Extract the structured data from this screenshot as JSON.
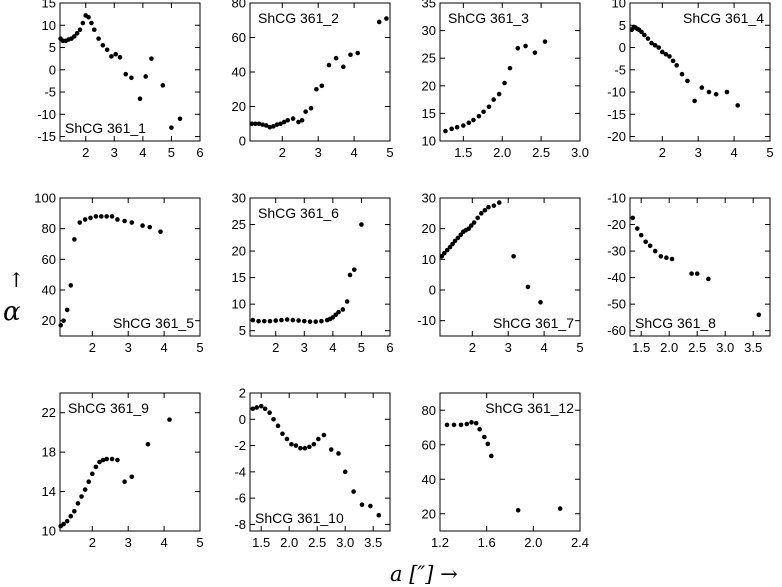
{
  "chart_data": [
    {
      "type": "scatter",
      "label": "ShCG 361_1",
      "label_pos": "bottom-left",
      "xlim": [
        1.1,
        6
      ],
      "ylim": [
        -16,
        15
      ],
      "xticks": [
        2,
        3,
        4,
        5,
        6
      ],
      "yticks": [
        -15,
        -10,
        -5,
        0,
        5,
        10,
        15
      ],
      "x": [
        1.12,
        1.2,
        1.3,
        1.4,
        1.5,
        1.6,
        1.7,
        1.8,
        1.9,
        2.0,
        2.1,
        2.2,
        2.3,
        2.45,
        2.6,
        2.75,
        2.9,
        3.05,
        3.2,
        3.4,
        3.6,
        3.9,
        4.1,
        4.3,
        4.7,
        5.0,
        5.3
      ],
      "y": [
        7,
        6.5,
        6.5,
        6.8,
        7,
        7.5,
        8.2,
        9,
        10.5,
        12.2,
        11.8,
        10.5,
        9,
        7,
        5.5,
        4.5,
        3,
        3.5,
        2.8,
        -1,
        -1.8,
        -6.5,
        -1.5,
        2.5,
        -3.5,
        -13,
        -11
      ]
    },
    {
      "type": "scatter",
      "label": "ShCG 361_2",
      "label_pos": "top-left",
      "xlim": [
        1.1,
        5
      ],
      "ylim": [
        0,
        80
      ],
      "xticks": [
        2,
        3,
        4,
        5
      ],
      "yticks": [
        0,
        20,
        40,
        60,
        80
      ],
      "x": [
        1.15,
        1.25,
        1.35,
        1.45,
        1.55,
        1.65,
        1.75,
        1.85,
        1.95,
        2.05,
        2.15,
        2.3,
        2.45,
        2.55,
        2.65,
        2.8,
        2.95,
        3.1,
        3.3,
        3.5,
        3.7,
        3.9,
        4.1,
        4.7,
        4.9
      ],
      "y": [
        10,
        10,
        10,
        9.5,
        9,
        8,
        8.5,
        9.5,
        10,
        11,
        12,
        13,
        11,
        12,
        17,
        19,
        30,
        32,
        44,
        48,
        43,
        50,
        51,
        69,
        71
      ]
    },
    {
      "type": "scatter",
      "label": "ShCG 361_3",
      "label_pos": "top-left",
      "xlim": [
        1.2,
        3
      ],
      "ylim": [
        10,
        35
      ],
      "xticks": [
        1.5,
        2.0,
        2.5,
        3.0
      ],
      "yticks": [
        10,
        15,
        20,
        25,
        30,
        35
      ],
      "x": [
        1.27,
        1.35,
        1.42,
        1.5,
        1.57,
        1.63,
        1.7,
        1.76,
        1.83,
        1.89,
        1.96,
        2.03,
        2.1,
        2.2,
        2.3,
        2.42,
        2.55
      ],
      "y": [
        11.8,
        12.2,
        12.5,
        12.8,
        13.3,
        13.8,
        14.5,
        15.3,
        16.2,
        17.5,
        18.5,
        20.5,
        23.2,
        26.8,
        27.2,
        26,
        28
      ]
    },
    {
      "type": "scatter",
      "label": "ShCG 361_4",
      "label_pos": "top-right",
      "xlim": [
        1.1,
        5
      ],
      "ylim": [
        -21,
        10
      ],
      "xticks": [
        2,
        3,
        4,
        5
      ],
      "yticks": [
        -20,
        -15,
        -10,
        -5,
        0,
        5,
        10
      ],
      "x": [
        1.15,
        1.2,
        1.25,
        1.3,
        1.35,
        1.42,
        1.5,
        1.6,
        1.7,
        1.8,
        1.9,
        2.0,
        2.1,
        2.2,
        2.3,
        2.4,
        2.55,
        2.7,
        2.9,
        3.1,
        3.3,
        3.5,
        3.8,
        4.1
      ],
      "y": [
        4,
        4.5,
        4.5,
        4.2,
        4,
        3.5,
        2.8,
        2,
        1,
        0.5,
        0,
        -1,
        -1.5,
        -2,
        -3,
        -4,
        -6,
        -7.5,
        -12,
        -9,
        -10,
        -10.5,
        -10,
        -13
      ]
    },
    {
      "type": "scatter",
      "label": "ShCG 361_5",
      "label_pos": "bottom-right",
      "xlim": [
        1.1,
        5
      ],
      "ylim": [
        10,
        100
      ],
      "xticks": [
        2,
        3,
        4,
        5
      ],
      "yticks": [
        20,
        40,
        60,
        80,
        100
      ],
      "x": [
        1.12,
        1.2,
        1.3,
        1.4,
        1.5,
        1.65,
        1.8,
        1.95,
        2.1,
        2.25,
        2.4,
        2.55,
        2.7,
        2.9,
        3.1,
        3.4,
        3.6,
        3.9
      ],
      "y": [
        17,
        20,
        27,
        43,
        73,
        84,
        86,
        87,
        88,
        88,
        88,
        88,
        86,
        85,
        84,
        82,
        81,
        78
      ]
    },
    {
      "type": "scatter",
      "label": "ShCG 361_6",
      "label_pos": "top-left",
      "xlim": [
        1.1,
        6
      ],
      "ylim": [
        4,
        30
      ],
      "xticks": [
        2,
        3,
        4,
        5,
        6
      ],
      "yticks": [
        5,
        10,
        15,
        20,
        25,
        30
      ],
      "x": [
        1.2,
        1.4,
        1.6,
        1.8,
        2.0,
        2.2,
        2.4,
        2.6,
        2.8,
        3.0,
        3.2,
        3.4,
        3.6,
        3.8,
        3.9,
        4.0,
        4.1,
        4.2,
        4.35,
        4.5,
        4.6,
        4.75,
        5.0
      ],
      "y": [
        7,
        6.8,
        6.8,
        6.8,
        6.9,
        7,
        7.1,
        7,
        6.9,
        6.8,
        6.7,
        6.7,
        6.8,
        7,
        7.2,
        7.5,
        8,
        8.5,
        9,
        10.5,
        15.5,
        16.5,
        25
      ]
    },
    {
      "type": "scatter",
      "label": "ShCG 361_7",
      "label_pos": "bottom-right",
      "xlim": [
        1.1,
        5
      ],
      "ylim": [
        -15,
        30
      ],
      "xticks": [
        2,
        3,
        4,
        5
      ],
      "yticks": [
        -10,
        0,
        10,
        20,
        30
      ],
      "x": [
        1.15,
        1.22,
        1.3,
        1.38,
        1.45,
        1.52,
        1.6,
        1.68,
        1.75,
        1.82,
        1.9,
        1.97,
        2.05,
        2.15,
        2.25,
        2.35,
        2.45,
        2.6,
        2.75,
        3.15,
        3.55,
        3.9
      ],
      "y": [
        11,
        12,
        13,
        14,
        15,
        16,
        17,
        18,
        19,
        19.5,
        20,
        21,
        22,
        23.5,
        25,
        26,
        27,
        27.5,
        28.5,
        11,
        1,
        -4
      ]
    },
    {
      "type": "scatter",
      "label": "ShCG 361_8",
      "label_pos": "bottom-left",
      "xlim": [
        1.3,
        3.8
      ],
      "ylim": [
        -62,
        -10
      ],
      "xticks": [
        1.5,
        2.0,
        2.5,
        3.0,
        3.5
      ],
      "yticks": [
        -60,
        -50,
        -40,
        -30,
        -20,
        -10
      ],
      "x": [
        1.35,
        1.43,
        1.5,
        1.58,
        1.66,
        1.75,
        1.85,
        1.95,
        2.05,
        2.4,
        2.5,
        2.7,
        3.6
      ],
      "y": [
        -17.5,
        -21.5,
        -24,
        -26.5,
        -28,
        -30,
        -32,
        -32.5,
        -33,
        -38.5,
        -38.5,
        -40.5,
        -54
      ]
    },
    {
      "type": "scatter",
      "label": "ShCG 361_9",
      "label_pos": "top-left",
      "xlim": [
        1.1,
        5
      ],
      "ylim": [
        10,
        24
      ],
      "xticks": [
        2,
        3,
        4,
        5
      ],
      "yticks": [
        10,
        14,
        18,
        22
      ],
      "x": [
        1.12,
        1.2,
        1.3,
        1.4,
        1.5,
        1.6,
        1.7,
        1.8,
        1.9,
        2.0,
        2.1,
        2.2,
        2.3,
        2.4,
        2.55,
        2.7,
        2.9,
        3.1,
        3.55,
        4.15
      ],
      "y": [
        10.5,
        10.7,
        11,
        11.5,
        12,
        12.8,
        13.5,
        14.2,
        15,
        15.8,
        16.5,
        17,
        17.2,
        17.3,
        17.3,
        17.2,
        15,
        15.5,
        18.8,
        21.3
      ]
    },
    {
      "type": "scatter",
      "label": "ShCG 361_10",
      "label_pos": "bottom-left",
      "xlim": [
        1.3,
        3.8
      ],
      "ylim": [
        -8.5,
        2
      ],
      "xticks": [
        1.5,
        2.0,
        2.5,
        3.0,
        3.5
      ],
      "yticks": [
        -8,
        -6,
        -4,
        -2,
        0,
        2
      ],
      "x": [
        1.35,
        1.42,
        1.5,
        1.57,
        1.65,
        1.72,
        1.8,
        1.88,
        1.96,
        2.04,
        2.12,
        2.2,
        2.28,
        2.36,
        2.44,
        2.52,
        2.62,
        2.75,
        2.88,
        3.0,
        3.15,
        3.3,
        3.45,
        3.6
      ],
      "y": [
        0.8,
        0.9,
        1,
        0.8,
        0.5,
        0,
        -0.5,
        -1.1,
        -1.5,
        -1.9,
        -2,
        -2.2,
        -2.2,
        -2.1,
        -1.9,
        -1.5,
        -1.2,
        -2.3,
        -2.6,
        -4,
        -5.5,
        -6.5,
        -6.6,
        -7.3
      ]
    },
    {
      "type": "scatter",
      "label": "ShCG 361_12",
      "label_pos": "top-right",
      "xlim": [
        1.2,
        2.4
      ],
      "ylim": [
        10,
        90
      ],
      "xticks": [
        1.2,
        1.6,
        2.0,
        2.4
      ],
      "yticks": [
        20,
        40,
        60,
        80
      ],
      "x": [
        1.26,
        1.32,
        1.38,
        1.43,
        1.47,
        1.51,
        1.54,
        1.58,
        1.61,
        1.64,
        1.87,
        2.23
      ],
      "y": [
        71.5,
        71.5,
        71.5,
        72,
        73,
        72.5,
        69,
        64.5,
        60.5,
        53.5,
        22,
        23
      ]
    }
  ],
  "axis_labels": {
    "x": "a [″] →",
    "y": "↑",
    "y_symbol": "α"
  }
}
